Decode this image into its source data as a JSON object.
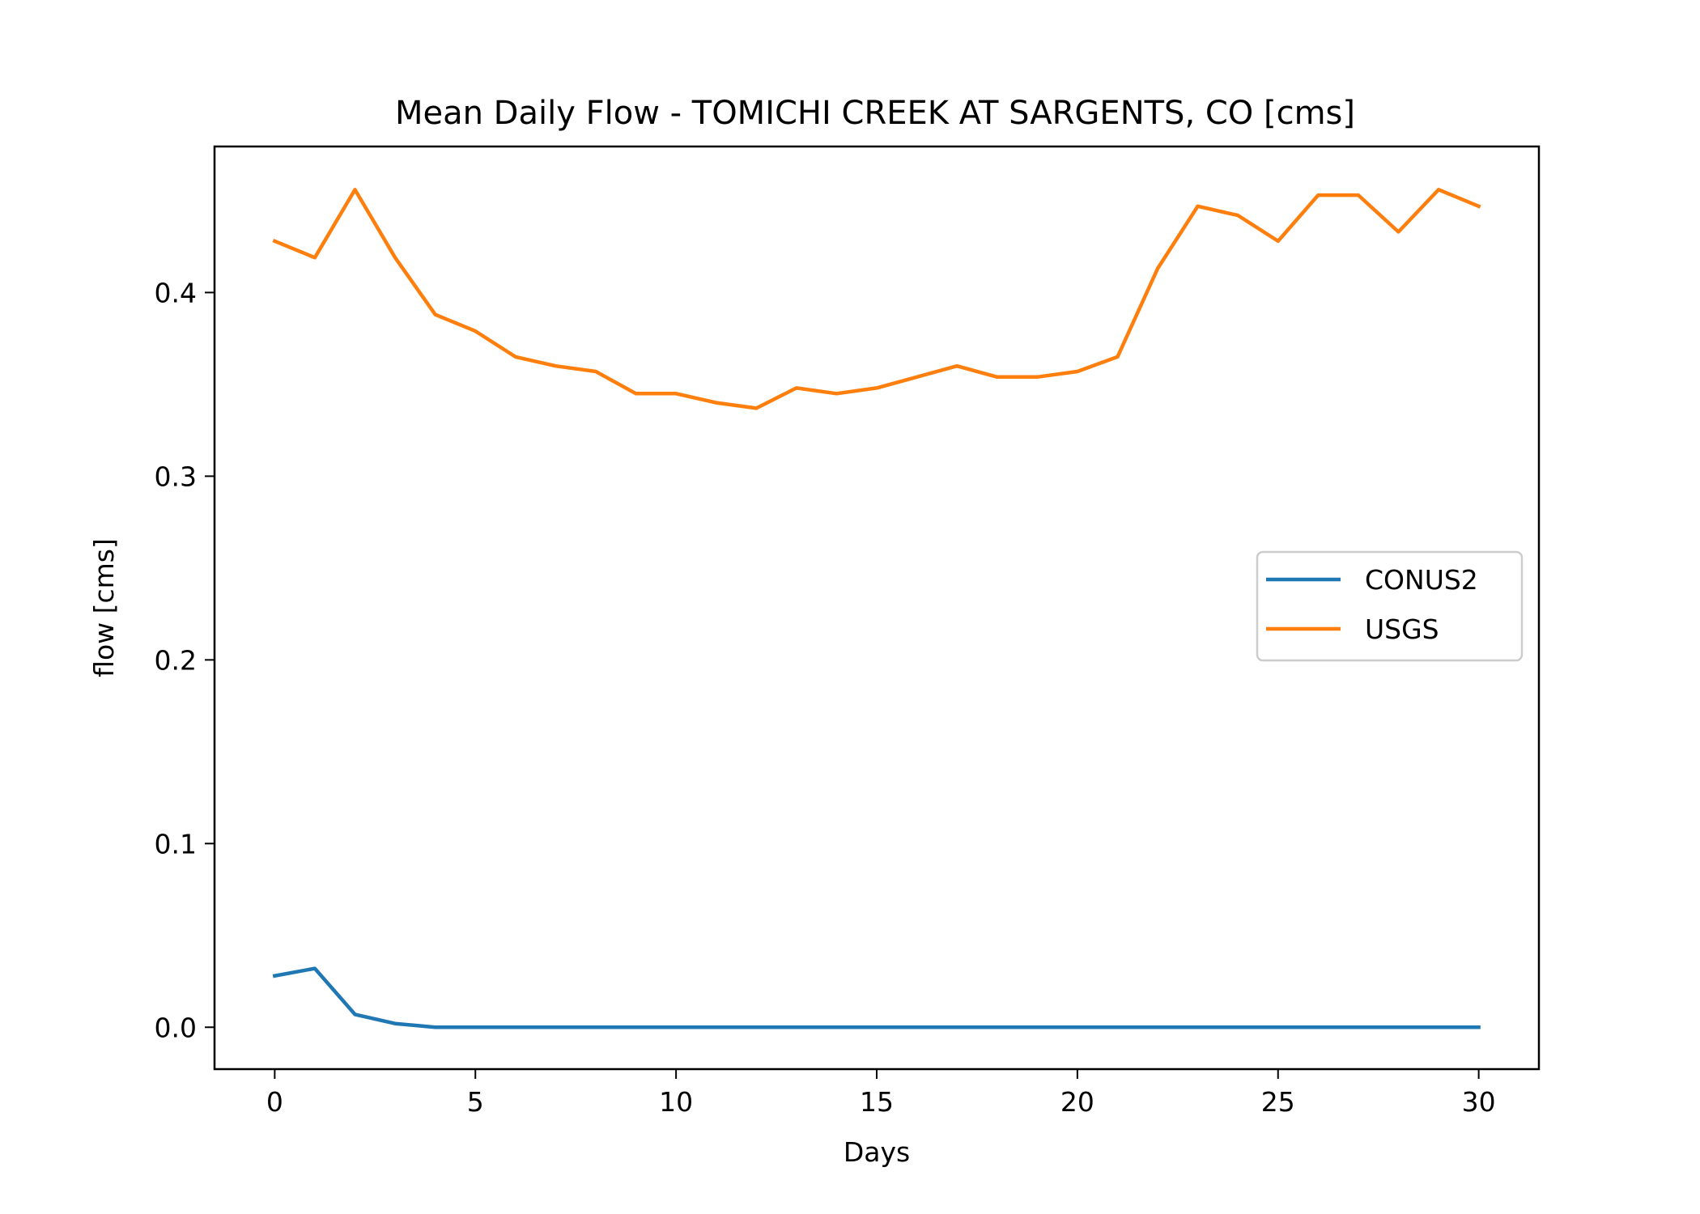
{
  "chart_data": {
    "type": "line",
    "title": "Mean Daily Flow - TOMICHI CREEK AT SARGENTS, CO [cms]",
    "xlabel": "Days",
    "ylabel": "flow [cms]",
    "xlim": [
      -1.5,
      31.5
    ],
    "ylim": [
      -0.0228,
      0.4795
    ],
    "xticks": [
      0,
      5,
      10,
      15,
      20,
      25,
      30
    ],
    "xtick_labels": [
      "0",
      "5",
      "10",
      "15",
      "20",
      "25",
      "30"
    ],
    "yticks": [
      0.0,
      0.1,
      0.2,
      0.3,
      0.4
    ],
    "ytick_labels": [
      "0.0",
      "0.1",
      "0.2",
      "0.3",
      "0.4"
    ],
    "grid": false,
    "legend_position": "center-right",
    "x": [
      0,
      1,
      2,
      3,
      4,
      5,
      6,
      7,
      8,
      9,
      10,
      11,
      12,
      13,
      14,
      15,
      16,
      17,
      18,
      19,
      20,
      21,
      22,
      23,
      24,
      25,
      26,
      27,
      28,
      29,
      30
    ],
    "series": [
      {
        "name": "CONUS2",
        "color": "#1f77b4",
        "values": [
          0.028,
          0.032,
          0.007,
          0.002,
          0.0,
          0.0,
          0.0,
          0.0,
          0.0,
          0.0,
          0.0,
          0.0,
          0.0,
          0.0,
          0.0,
          0.0,
          0.0,
          0.0,
          0.0,
          0.0,
          0.0,
          0.0,
          0.0,
          0.0,
          0.0,
          0.0,
          0.0,
          0.0,
          0.0,
          0.0,
          0.0
        ]
      },
      {
        "name": "USGS",
        "color": "#ff7f0e",
        "values": [
          0.428,
          0.419,
          0.456,
          0.419,
          0.388,
          0.379,
          0.365,
          0.36,
          0.357,
          0.345,
          0.345,
          0.34,
          0.337,
          0.348,
          0.345,
          0.348,
          0.354,
          0.36,
          0.354,
          0.354,
          0.357,
          0.365,
          0.413,
          0.447,
          0.442,
          0.428,
          0.453,
          0.453,
          0.433,
          0.456,
          0.447
        ]
      }
    ]
  }
}
